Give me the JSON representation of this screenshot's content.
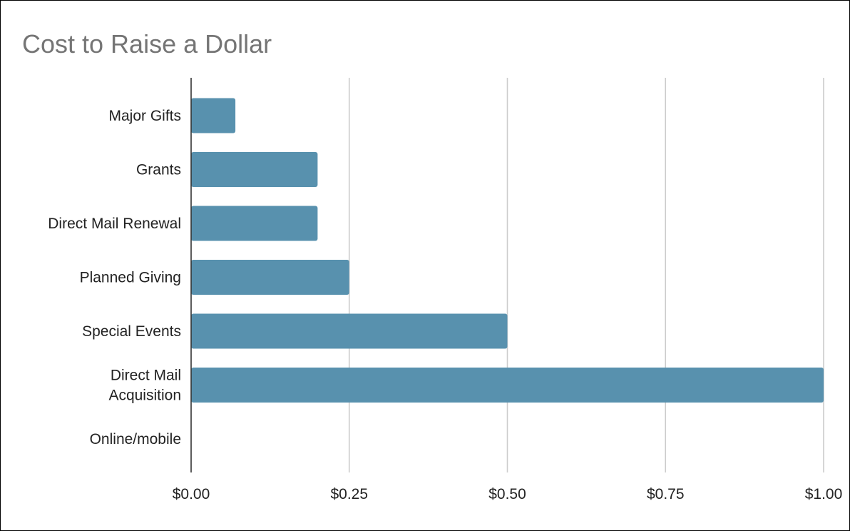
{
  "chart_data": {
    "type": "bar",
    "orientation": "horizontal",
    "title": "Cost to Raise a Dollar",
    "categories": [
      "Major Gifts",
      "Grants",
      "Direct Mail Renewal",
      "Planned Giving",
      "Special Events",
      "Direct Mail Acquisition",
      "Online/mobile"
    ],
    "category_display_lines": [
      [
        "Major Gifts"
      ],
      [
        "Grants"
      ],
      [
        "Direct Mail Renewal"
      ],
      [
        "Planned Giving"
      ],
      [
        "Special Events"
      ],
      [
        "Direct Mail",
        "Acquisition"
      ],
      [
        "Online/mobile"
      ]
    ],
    "values": [
      0.07,
      0.2,
      0.2,
      0.25,
      0.5,
      1.0,
      null
    ],
    "xlim": [
      0,
      1.0
    ],
    "x_ticks": [
      0,
      0.25,
      0.5,
      0.75,
      1.0
    ],
    "x_tick_labels": [
      "$0.00",
      "$0.25",
      "$0.50",
      "$0.75",
      "$1.00"
    ],
    "xlabel": "",
    "ylabel": "",
    "grid": "vertical",
    "legend": "none",
    "colors": {
      "bar": "#5891ae",
      "grid": "#cccccc",
      "axis": "#333333",
      "title": "#757575",
      "text": "#222222"
    }
  }
}
